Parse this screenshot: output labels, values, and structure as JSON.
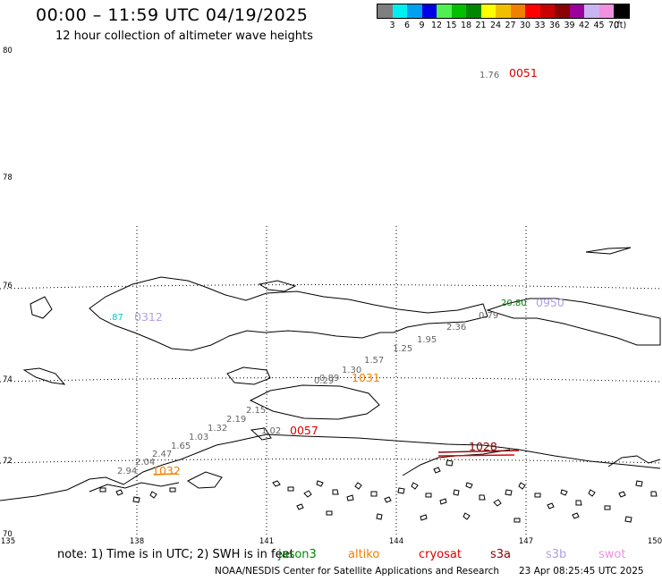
{
  "header": {
    "title": "00:00 – 11:59 UTC 04/19/2025",
    "subtitle": "12 hour collection of altimeter wave heights"
  },
  "legend": {
    "colors": [
      "#7f7f7f",
      "#00f0f0",
      "#00a0f0",
      "#0000e6",
      "#50f050",
      "#00c000",
      "#008800",
      "#ffff00",
      "#f0c000",
      "#f08000",
      "#ff0000",
      "#c80000",
      "#8b0000",
      "#9c009c",
      "#c8b4f0",
      "#f090e0",
      "#000000"
    ],
    "ticks": [
      "3",
      "6",
      "9",
      "12",
      "15",
      "18",
      "21",
      "24",
      "27",
      "30",
      "33",
      "36",
      "39",
      "42",
      "45",
      "70",
      "(ft)"
    ]
  },
  "axes": {
    "lat_labels": [
      "80",
      "78",
      "76",
      "74",
      "72",
      "70"
    ],
    "lon_labels": [
      "135",
      "138",
      "141",
      "144",
      "147",
      "150"
    ]
  },
  "map": {
    "passes": [
      {
        "id": "0051",
        "color": "#dd0000"
      },
      {
        "id": "0312",
        "color": "#b4a0e6"
      },
      {
        "id": "0950",
        "color": "#b4a0e6"
      },
      {
        "id": "1031",
        "color": "#f08000"
      },
      {
        "id": "0057",
        "color": "#dd0000"
      },
      {
        "id": "1032",
        "color": "#f08000"
      },
      {
        "id": "1028",
        "color": "#8b0000"
      }
    ],
    "values": [
      {
        "text": "1.76",
        "color": "#666666"
      },
      {
        "text": ".87",
        "color": "#00c8c8"
      },
      {
        "text": "20.80",
        "color": "#008800"
      },
      {
        "text": "0.79",
        "color": "#666666"
      },
      {
        "text": "2.36",
        "color": "#666666"
      },
      {
        "text": "1.95",
        "color": "#666666"
      },
      {
        "text": "1.25",
        "color": "#666666"
      },
      {
        "text": "1.57",
        "color": "#666666"
      },
      {
        "text": "1.30",
        "color": "#666666"
      },
      {
        "text": "0.89",
        "color": "#666666"
      },
      {
        "text": "0.29",
        "color": "#666666"
      },
      {
        "text": "2.15",
        "color": "#666666"
      },
      {
        "text": "2.19",
        "color": "#666666"
      },
      {
        "text": "1.32",
        "color": "#666666"
      },
      {
        "text": "1.02",
        "color": "#666666"
      },
      {
        "text": "1.03",
        "color": "#666666"
      },
      {
        "text": "1.65",
        "color": "#666666"
      },
      {
        "text": "2.47",
        "color": "#666666"
      },
      {
        "text": "2.04",
        "color": "#666666"
      },
      {
        "text": "2.94",
        "color": "#666666"
      }
    ]
  },
  "footer": {
    "note": "note: 1) Time is in UTC; 2) SWH is in feet",
    "satellites": [
      {
        "name": "jason3",
        "color": "#008800"
      },
      {
        "name": "altiko",
        "color": "#f08000"
      },
      {
        "name": "cryosat",
        "color": "#dd0000"
      },
      {
        "name": "s3a",
        "color": "#8b0000"
      },
      {
        "name": "s3b",
        "color": "#b4a0e6"
      },
      {
        "name": "swot",
        "color": "#f090e0"
      }
    ],
    "credit": "NOAA/NESDIS Center for Satellite Applications and Research",
    "timestamp": "23 Apr 08:25:45 UTC 2025"
  }
}
